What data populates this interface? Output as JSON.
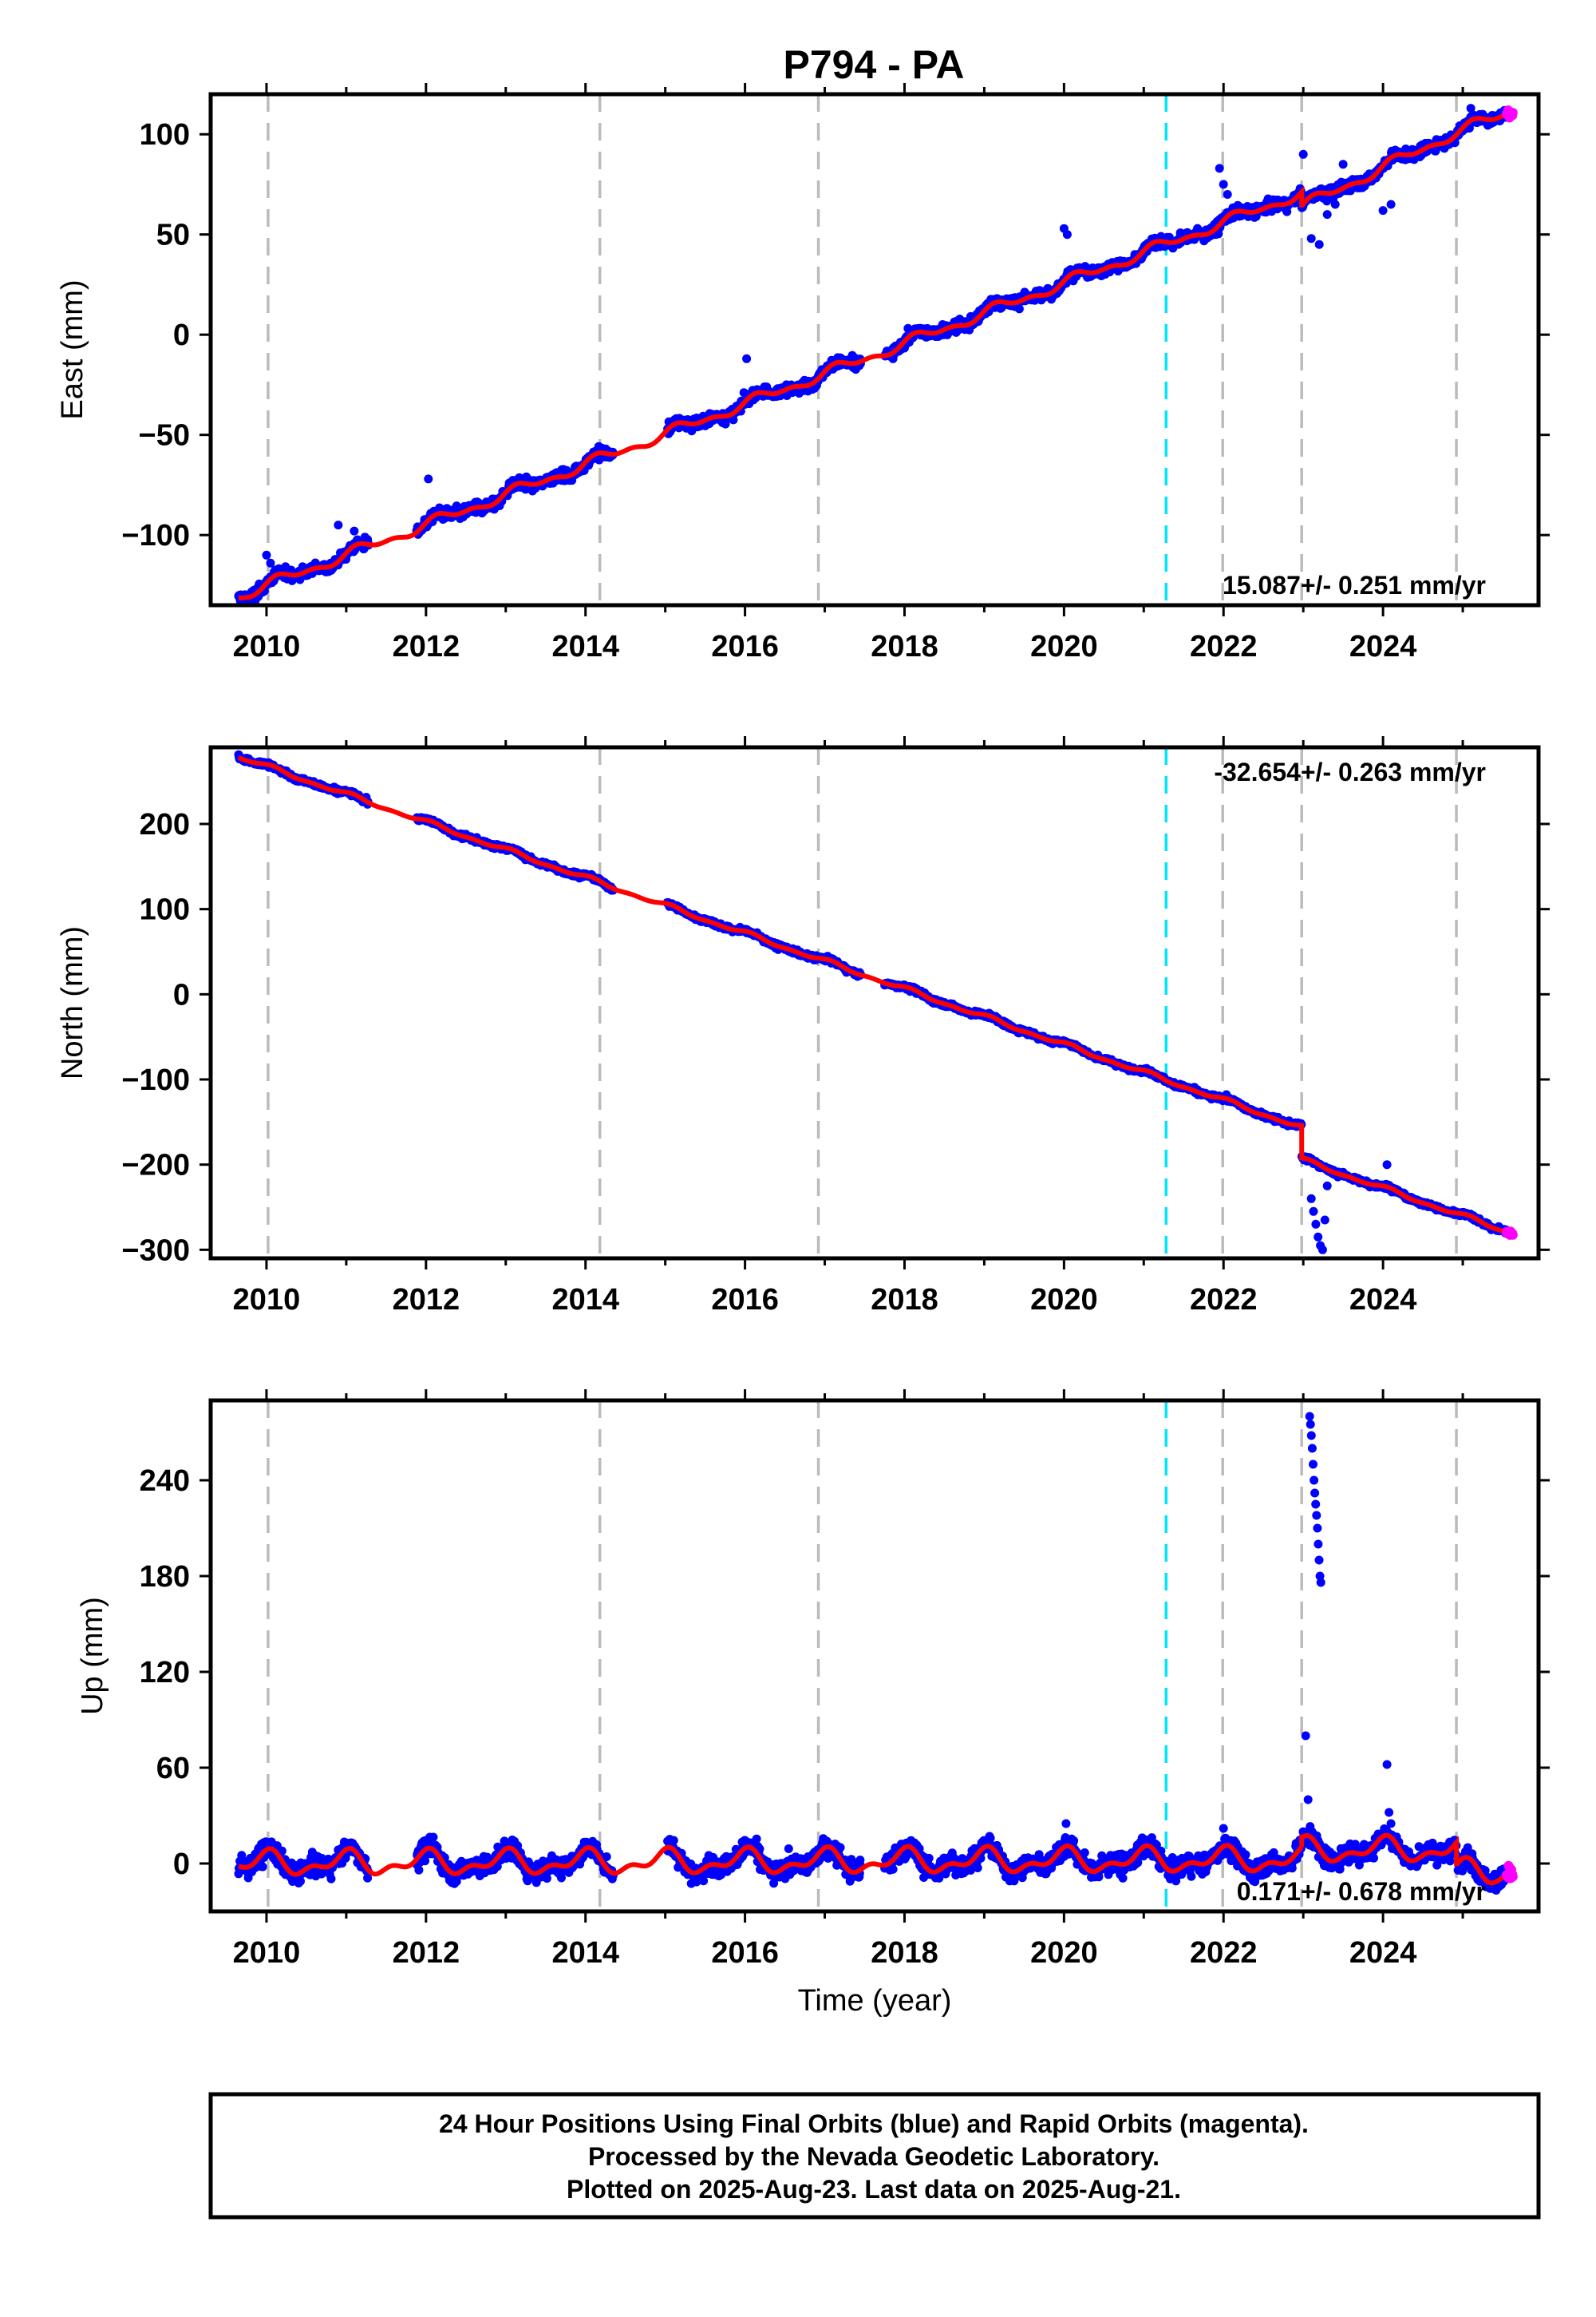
{
  "title": "P794 - PA",
  "footer": {
    "line1": "24 Hour Positions Using Final Orbits (blue) and Rapid Orbits (magenta).",
    "line2": "Processed by the Nevada Geodetic Laboratory.",
    "line3": "Plotted on 2025-Aug-23. Last data on 2025-Aug-21."
  },
  "colors": {
    "final_orbits": "#0000ff",
    "rapid_orbits": "#ff00ff",
    "model": "#ff0000",
    "equipment_change": "#00e5ff",
    "earthquake_or_offset": "#bbbbbb"
  },
  "chart_data": [
    {
      "type": "scatter",
      "panel": "east",
      "title": "",
      "xlabel": "",
      "ylabel": "East (mm)",
      "xlim": [
        2009.3,
        2025.95
      ],
      "ylim": [
        -135,
        120
      ],
      "x_ticks": [
        2010,
        2012,
        2014,
        2016,
        2018,
        2020,
        2022,
        2024
      ],
      "y_ticks": [
        -100,
        -50,
        0,
        50,
        100
      ],
      "y_tick_labels": [
        "−100",
        "−50",
        "0",
        "50",
        "100"
      ],
      "rate_label": "15.087+/- 0.251 mm/yr",
      "rate_position": "bottom-right",
      "gray_lines": [
        2010.02,
        2014.18,
        2016.92,
        2021.99,
        2022.98,
        2024.92
      ],
      "cyan_lines": [
        2021.28
      ],
      "data_gaps": [
        [
          2011.28,
          2011.88
        ],
        [
          2014.35,
          2015.02
        ],
        [
          2017.45,
          2017.75
        ]
      ],
      "model": {
        "rate": 15.087,
        "intercept": -130.4,
        "t0": 2009.65,
        "ann_amp": 2.2,
        "ann_phase": 0.4,
        "steps": [
          {
            "t": 2022.98,
            "dy": -7.0
          }
        ],
        "extra_trend": [
          {
            "t0": 2022.98,
            "t1": 2024.92,
            "dy": 8
          }
        ],
        "segments": []
      },
      "blue_scatter": 2.5,
      "outliers": [
        {
          "t0": 2010.0,
          "t1": 2010.05,
          "vals": [
            -110,
            -114
          ]
        },
        {
          "t0": 2010.9,
          "t1": 2011.1,
          "vals": [
            -95,
            -98
          ]
        },
        {
          "t0": 2012.0,
          "t1": 2012.06,
          "vals": [
            -72
          ]
        },
        {
          "t0": 2016.0,
          "t1": 2016.04,
          "vals": [
            -12
          ]
        },
        {
          "t0": 2020.0,
          "t1": 2020.04,
          "vals": [
            53,
            50
          ]
        },
        {
          "t0": 2021.95,
          "t1": 2022.05,
          "vals": [
            83,
            75,
            70
          ]
        },
        {
          "t0": 2023.0,
          "t1": 2023.5,
          "vals": [
            90,
            48,
            45,
            60,
            65,
            85
          ]
        },
        {
          "t0": 2024.0,
          "t1": 2024.1,
          "vals": [
            62,
            65
          ]
        },
        {
          "t0": 2025.1,
          "t1": 2025.25,
          "vals": [
            113,
            110
          ]
        }
      ],
      "rapid_points": {
        "t0": 2025.55,
        "t1": 2025.63,
        "center": 105
      }
    },
    {
      "type": "scatter",
      "panel": "north",
      "title": "",
      "xlabel": "",
      "ylabel": "North (mm)",
      "xlim": [
        2009.3,
        2025.95
      ],
      "ylim": [
        -310,
        290
      ],
      "x_ticks": [
        2010,
        2012,
        2014,
        2016,
        2018,
        2020,
        2022,
        2024
      ],
      "y_ticks": [
        -300,
        -200,
        -100,
        0,
        100,
        200
      ],
      "y_tick_labels": [
        "−300",
        "−200",
        "−100",
        "0",
        "100",
        "200"
      ],
      "rate_label": "-32.654+/- 0.263 mm/yr",
      "rate_position": "top-right",
      "gray_lines": [
        2010.02,
        2014.18,
        2016.92,
        2021.99,
        2022.98,
        2024.92
      ],
      "cyan_lines": [
        2021.28
      ],
      "data_gaps": [
        [
          2011.28,
          2011.88
        ],
        [
          2014.35,
          2015.02
        ],
        [
          2017.45,
          2017.75
        ]
      ],
      "model": {
        "rate": -32.654,
        "intercept": 279,
        "t0": 2009.65,
        "ann_amp": 2.0,
        "ann_phase": 1.2,
        "steps": [
          {
            "t": 2022.98,
            "dy": -38
          }
        ],
        "extra_trend": [],
        "segments": []
      },
      "blue_scatter": 2.5,
      "outliers": [
        {
          "t0": 2010.0,
          "t1": 2010.05,
          "vals": [
            272
          ]
        },
        {
          "t0": 2023.1,
          "t1": 2023.3,
          "vals": [
            -240,
            -255,
            -270,
            -285,
            -295,
            -300,
            -265,
            -225
          ]
        },
        {
          "t0": 2024.05,
          "t1": 2024.15,
          "vals": [
            -200,
            -230
          ]
        }
      ],
      "rapid_points": {
        "t0": 2025.55,
        "t1": 2025.63,
        "center": -274
      }
    },
    {
      "type": "scatter",
      "panel": "up",
      "title": "",
      "xlabel": "Time (year)",
      "ylabel": "Up (mm)",
      "xlim": [
        2009.3,
        2025.95
      ],
      "ylim": [
        -30,
        290
      ],
      "x_ticks": [
        2010,
        2012,
        2014,
        2016,
        2018,
        2020,
        2022,
        2024
      ],
      "y_ticks": [
        0,
        60,
        120,
        180,
        240
      ],
      "y_tick_labels": [
        "0",
        "60",
        "120",
        "180",
        "240"
      ],
      "rate_label": "0.171+/- 0.678 mm/yr",
      "rate_position": "bottom-right",
      "gray_lines": [
        2010.02,
        2014.18,
        2016.92,
        2021.99,
        2022.98,
        2024.92
      ],
      "cyan_lines": [
        2021.28
      ],
      "data_gaps": [
        [
          2011.28,
          2011.88
        ],
        [
          2014.35,
          2015.02
        ],
        [
          2017.45,
          2017.75
        ]
      ],
      "model": {
        "rate": 0.171,
        "intercept": 0,
        "t0": 2009.65,
        "ann_amp": 6.0,
        "ann_phase": 1.6,
        "steps": [
          {
            "t": 2022.98,
            "dy": 6
          },
          {
            "t": 2024.92,
            "dy": -14
          }
        ],
        "extra_trend": [],
        "segments": []
      },
      "blue_scatter": 5.5,
      "outliers": [
        {
          "t0": 2023.08,
          "t1": 2023.22,
          "vals": [
            280,
            275,
            268,
            260,
            250,
            240,
            232,
            225,
            218,
            210,
            200,
            190,
            180,
            176
          ]
        },
        {
          "t0": 2023.03,
          "t1": 2023.06,
          "vals": [
            80,
            40
          ]
        },
        {
          "t0": 2024.05,
          "t1": 2024.1,
          "vals": [
            62,
            32,
            25
          ]
        },
        {
          "t0": 2020.0,
          "t1": 2020.05,
          "vals": [
            25
          ]
        },
        {
          "t0": 2021.98,
          "t1": 2022.02,
          "vals": [
            22
          ]
        }
      ],
      "rapid_points": {
        "t0": 2025.55,
        "t1": 2025.63,
        "center": 0
      }
    }
  ]
}
